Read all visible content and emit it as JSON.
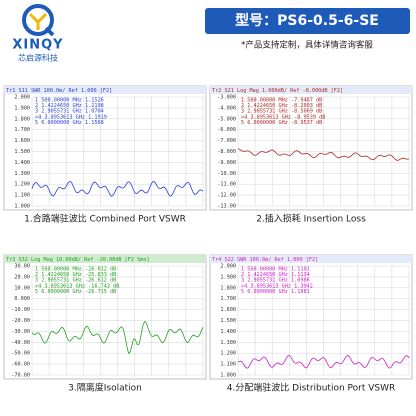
{
  "header": {
    "brand": "XINQY",
    "brand_cn": "芯启源科技",
    "model": "型号：PS6-0.5-6-SE",
    "note": "*产品支持定制，具体详情咨询客服"
  },
  "panels": [
    {
      "title": "Tr1 S11 SWR 100.0m/ Ref 1.000 [F2]",
      "markers": [
        "1  500.00000 MHz  1.1526",
        "2  1.4224650 GHz  1.2198",
        "3  2.9055731 GHz  1.0704",
        ">4 3.8953613 GHz  1.1919",
        "5  6.0000000 GHz  1.1568"
      ],
      "y_labels": [
        "2.000",
        "1.900",
        "1.800",
        "1.700",
        "1.600",
        "1.500",
        "1.400",
        "1.300",
        "1.200",
        "1.100",
        "1.000"
      ],
      "caption": "1.合路端驻波比 Combined Port VSWR"
    },
    {
      "title": "Tr2 S21 Log Mag 1.000dB/ Ref -8.000dB [F2]",
      "markers": [
        "1  500.00000 MHz -7.9487 dB",
        "2  1.4224650 GHz -8.2003 dB",
        "3  2.9055731 GHz -8.5069 dB",
        ">4 3.8953613 GHz -8.9539 dB",
        "5  6.0000000 GHz -8.9537 dB"
      ],
      "y_labels": [
        "-3.000",
        "-4.000",
        "-5.000",
        "-6.000",
        "-7.000",
        "-8.000",
        "-9.000",
        "-10.00",
        "-11.00",
        "-12.00",
        "-13.00"
      ],
      "caption": "2.插入损耗 Insertion Loss"
    },
    {
      "title": "Tr3 S32 Log Mag 10.00dB/ Ref -20.00dB [F2 Smo]",
      "markers": [
        "1  500.00000 MHz -26.012 dB",
        "2  1.4224650 GHz -25.833 dB",
        "3  2.9055731 GHz -26.612 dB",
        ">4 3.8953613 GHz -16.743 dB",
        "5  6.0000000 GHz -26.715 dB"
      ],
      "y_labels": [
        "30.00",
        "20.00",
        "10.00",
        "0.000",
        "-10.00",
        "-20.00",
        "-30.00",
        "-40.00",
        "-50.00",
        "-60.00",
        "-70.00"
      ],
      "caption": "3.隔离度Isolation"
    },
    {
      "title": "Tr4 S22 SWR 100.0m/ Ref 1.000 [F2]",
      "markers": [
        "1  500.00000 MHz  1.1101",
        "2  1.4224650 GHz  1.1134",
        "3  2.9055731 GHz  1.0986",
        ">4 3.8953613 GHz  1.3942",
        "5  6.0000000 GHz  1.1881"
      ],
      "y_labels": [
        "2.000",
        "1.900",
        "1.800",
        "1.700",
        "1.600",
        "1.500",
        "1.400",
        "1.300",
        "1.200",
        "1.100",
        "1.000"
      ],
      "caption": "4.分配端驻波比 Distribution Port VSWR"
    }
  ]
}
